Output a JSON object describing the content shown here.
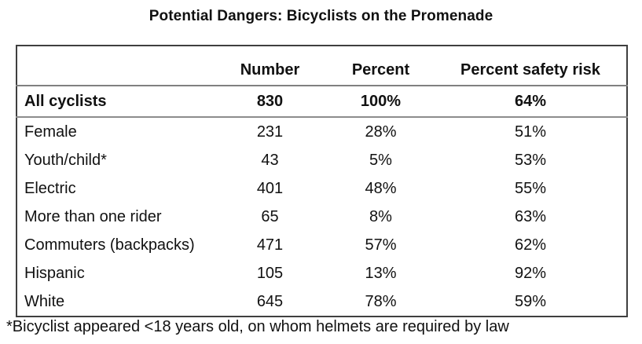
{
  "chart_data": {
    "type": "table",
    "title": "Potential Dangers: Bicyclists on the Promenade",
    "columns": [
      "",
      "Number",
      "Percent",
      "Percent safety risk"
    ],
    "rows": [
      {
        "label": "All cyclists",
        "number": "830",
        "percent": "100%",
        "safety_risk": "64%",
        "bold": true
      },
      {
        "label": "Female",
        "number": "231",
        "percent": "28%",
        "safety_risk": "51%"
      },
      {
        "label": "Youth/child*",
        "number": "43",
        "percent": "5%",
        "safety_risk": "53%"
      },
      {
        "label": "Electric",
        "number": "401",
        "percent": "48%",
        "safety_risk": "55%"
      },
      {
        "label": "More than one rider",
        "number": "65",
        "percent": "8%",
        "safety_risk": "63%"
      },
      {
        "label": "Commuters (backpacks)",
        "number": "471",
        "percent": "57%",
        "safety_risk": "62%"
      },
      {
        "label": "Hispanic",
        "number": "105",
        "percent": "13%",
        "safety_risk": "92%"
      },
      {
        "label": "White",
        "number": "645",
        "percent": "78%",
        "safety_risk": "59%"
      }
    ],
    "footnote": "*Bicyclist appeared <18 years old, on whom helmets are required by law",
    "layout": {
      "legend": "none",
      "grid": "outer-border-with-header-separators"
    }
  },
  "colors": {
    "text": "#111111",
    "border_outer": "#3f3f3f",
    "border_inner": "#808080",
    "background": "#ffffff"
  }
}
